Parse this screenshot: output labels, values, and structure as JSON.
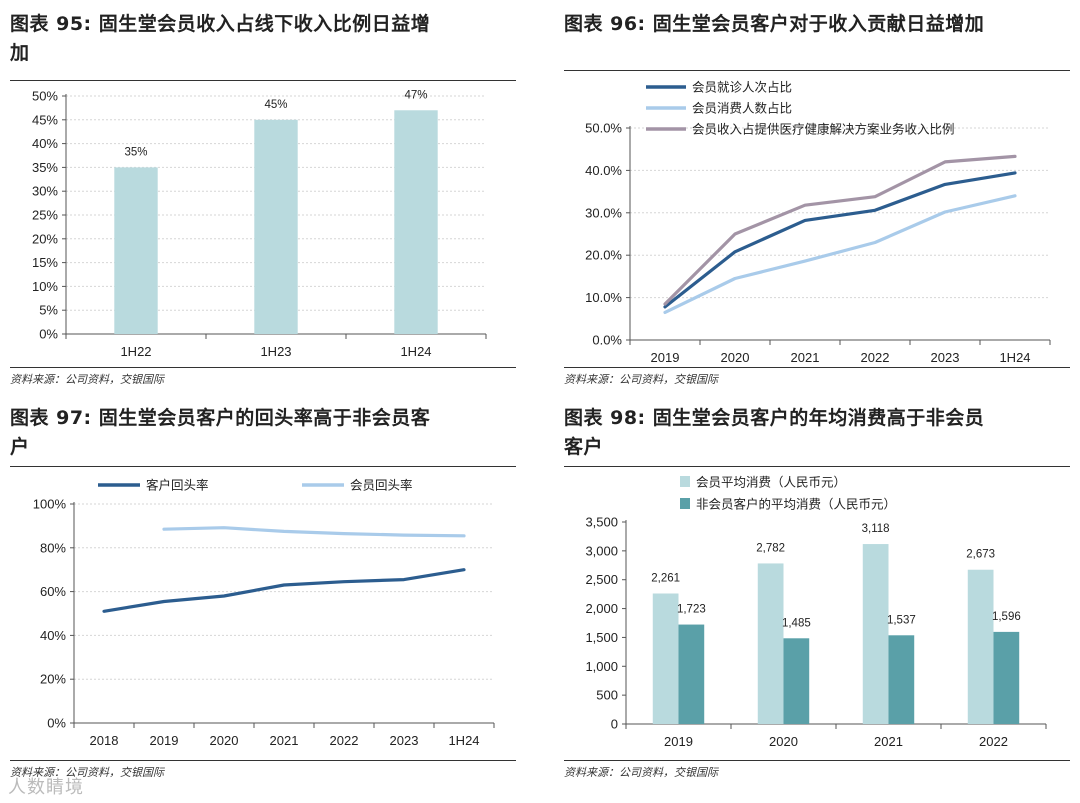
{
  "source_text": "资料来源：公司资料，交银国际",
  "watermark_text": "人数睛境",
  "chart_data": [
    {
      "id": "c95",
      "type": "bar",
      "title_lines": [
        "图表 95: 固生堂会员收入占线下收入比例日益增",
        "加"
      ],
      "categories": [
        "1H22",
        "1H23",
        "1H24"
      ],
      "values": [
        35,
        45,
        47
      ],
      "value_labels": [
        "35%",
        "45%",
        "47%"
      ],
      "ylim": [
        0,
        50
      ],
      "yticks": [
        "0%",
        "5%",
        "10%",
        "15%",
        "20%",
        "25%",
        "30%",
        "35%",
        "40%",
        "45%",
        "50%"
      ],
      "color": "#b9dade",
      "grid": true
    },
    {
      "id": "c96",
      "type": "line",
      "title_lines": [
        "图表 96: 固生堂会员客户对于收入贡献日益增加"
      ],
      "categories": [
        "2019",
        "2020",
        "2021",
        "2022",
        "2023",
        "1H24"
      ],
      "ylim": [
        0,
        50
      ],
      "yticks": [
        "0.0%",
        "10.0%",
        "20.0%",
        "30.0%",
        "40.0%",
        "50.0%"
      ],
      "series": [
        {
          "name": "会员就诊人次占比",
          "values": [
            7.8,
            20.8,
            28.2,
            30.6,
            36.7,
            39.4
          ],
          "color": "#2c5d8f"
        },
        {
          "name": "会员消费人数占比",
          "values": [
            6.5,
            14.5,
            18.6,
            23.0,
            30.2,
            34.0
          ],
          "color": "#a9cbea"
        },
        {
          "name": "会员收入占提供医疗健康解决方案业务收入比例",
          "values": [
            8.5,
            25.0,
            31.8,
            33.8,
            42.0,
            43.3
          ],
          "color": "#a394a6"
        }
      ],
      "grid": true
    },
    {
      "id": "c97",
      "type": "line",
      "title_lines": [
        "图表 97: 固生堂会员客户的回头率高于非会员客",
        "户"
      ],
      "categories": [
        "2018",
        "2019",
        "2020",
        "2021",
        "2022",
        "2023",
        "1H24"
      ],
      "ylim": [
        0,
        100
      ],
      "yticks": [
        "0%",
        "20%",
        "40%",
        "60%",
        "80%",
        "100%"
      ],
      "series": [
        {
          "name": "客户回头率",
          "values": [
            51,
            55.5,
            58,
            63,
            64.5,
            65.5,
            70
          ],
          "color": "#2c5d8f"
        },
        {
          "name": "会员回头率",
          "values": [
            null,
            88.5,
            89.2,
            87.5,
            86.5,
            85.8,
            85.5
          ],
          "color": "#a9cbea"
        }
      ],
      "grid": true
    },
    {
      "id": "c98",
      "type": "bar",
      "title_lines": [
        "图表 98: 固生堂会员客户的年均消费高于非会员",
        "客户"
      ],
      "categories": [
        "2019",
        "2020",
        "2021",
        "2022"
      ],
      "ylim": [
        0,
        3500
      ],
      "yticks": [
        "0",
        "500",
        "1,000",
        "1,500",
        "2,000",
        "2,500",
        "3,000",
        "3,500"
      ],
      "series": [
        {
          "name": "会员平均消费（人民币元）",
          "values": [
            2261,
            2782,
            3118,
            2673
          ],
          "labels": [
            "2,261",
            "2,782",
            "3,118",
            "2,673"
          ],
          "color": "#b9dade"
        },
        {
          "name": "非会员客户的平均消费（人民币元）",
          "values": [
            1723,
            1485,
            1537,
            1596
          ],
          "labels": [
            "1,723",
            "1,485",
            "1,537",
            "1,596"
          ],
          "color": "#5aa0a8"
        }
      ],
      "grid": false
    }
  ]
}
